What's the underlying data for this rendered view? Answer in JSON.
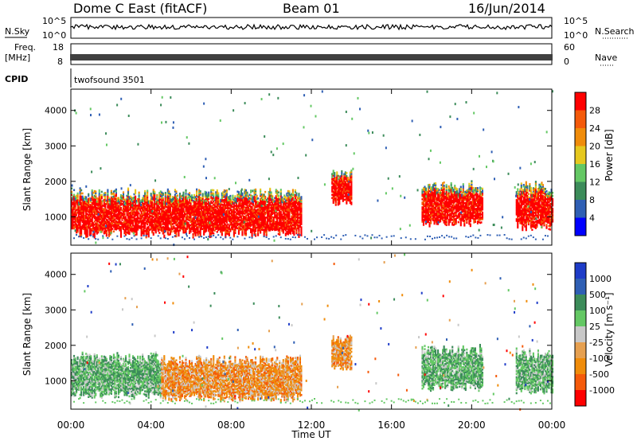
{
  "header": {
    "radar": "Dome C East (fitACF)",
    "beam": "Beam 01",
    "date": "16/Jun/2014"
  },
  "status_panels": {
    "nsky_label": "N.Sky",
    "nsky_ticks": [
      "10^5",
      "10^0"
    ],
    "nsearch_label": "N.Search",
    "nsearch_ticks": [
      "10^5",
      "10^0"
    ],
    "freq_label_1": "Freq.",
    "freq_label_2": "[MHz]",
    "freq_ticks": [
      "18",
      "8"
    ],
    "nave_label": "Nave",
    "nave_ticks": [
      "60",
      "0"
    ],
    "cpid_label": "CPID",
    "cpid_value": "twofsound 3501"
  },
  "chart_data": [
    {
      "type": "heatmap",
      "panel": "power",
      "ylabel": "Slant Range [km]",
      "xlabel": "Time UT",
      "x_ticks": [
        "00:00",
        "04:00",
        "08:00",
        "12:00",
        "16:00",
        "20:00",
        "00:00"
      ],
      "y_ticks": [
        1000,
        2000,
        3000,
        4000
      ],
      "ylim": [
        200,
        4600
      ],
      "xlim_hours": [
        0,
        24
      ],
      "colorbar": {
        "label": "Power [dB]",
        "ticks": [
          "28",
          "24",
          "20",
          "16",
          "12",
          "8",
          "4"
        ],
        "colors": [
          "#0000ff",
          "#2f5fb4",
          "#3c8c5a",
          "#64c864",
          "#e6c81e",
          "#f08c0a",
          "#f55a0a",
          "#ff0000"
        ]
      },
      "echo_regions": [
        {
          "t_start": 0.0,
          "t_end": 11.5,
          "range_low": 400,
          "range_high": 1800,
          "typical_power_db": 28
        },
        {
          "t_start": 13.0,
          "t_end": 14.0,
          "range_low": 1300,
          "range_high": 2300,
          "typical_power_db": 22
        },
        {
          "t_start": 17.5,
          "t_end": 20.5,
          "range_low": 700,
          "range_high": 2000,
          "typical_power_db": 24
        },
        {
          "t_start": 22.2,
          "t_end": 24.0,
          "range_low": 600,
          "range_high": 2000,
          "typical_power_db": 26
        }
      ]
    },
    {
      "type": "heatmap",
      "panel": "velocity",
      "ylabel": "Slant Range [km]",
      "xlabel": "Time UT",
      "x_ticks": [
        "00:00",
        "04:00",
        "08:00",
        "12:00",
        "16:00",
        "20:00",
        "00:00"
      ],
      "y_ticks": [
        1000,
        2000,
        3000,
        4000
      ],
      "ylim": [
        200,
        4600
      ],
      "xlim_hours": [
        0,
        24
      ],
      "colorbar": {
        "label": "Velocity [m s⁻¹]",
        "ticks": [
          "1000",
          "500",
          "100",
          "25",
          "-25",
          "-100",
          "-500",
          "-1000"
        ],
        "colors": [
          "#ff0000",
          "#f55a0a",
          "#f08c0a",
          "#e6a050",
          "#c8c8c8",
          "#64c864",
          "#3c8c5a",
          "#2f5fb4",
          "#1e3cc8"
        ]
      },
      "echo_regions": [
        {
          "t_start": 0.0,
          "t_end": 4.5,
          "range_low": 500,
          "range_high": 1800,
          "typical_velocity": 300
        },
        {
          "t_start": 4.5,
          "t_end": 11.5,
          "range_low": 400,
          "range_high": 1700,
          "typical_velocity": -200
        },
        {
          "t_start": 13.0,
          "t_end": 14.0,
          "range_low": 1300,
          "range_high": 2300,
          "typical_velocity": -150
        },
        {
          "t_start": 17.5,
          "t_end": 20.5,
          "range_low": 700,
          "range_high": 2000,
          "typical_velocity": 300
        },
        {
          "t_start": 22.2,
          "t_end": 24.0,
          "range_low": 600,
          "range_high": 1900,
          "typical_velocity": 400
        }
      ]
    }
  ]
}
